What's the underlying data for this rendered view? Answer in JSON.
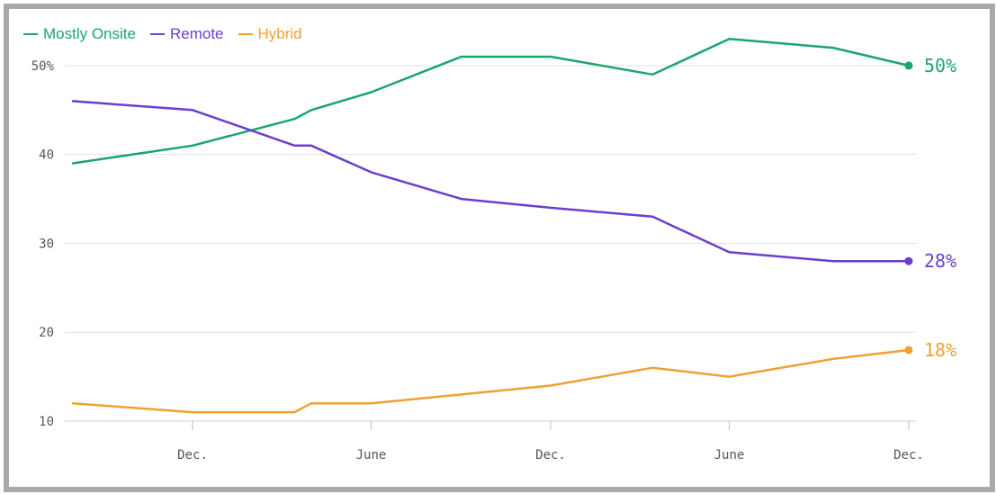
{
  "chart_data": {
    "type": "line",
    "title": "",
    "xlabel": "",
    "ylabel": "",
    "ylim": [
      10,
      55
    ],
    "y_ticks": [
      {
        "value": 50,
        "label": "50%"
      },
      {
        "value": 40,
        "label": "40"
      },
      {
        "value": 30,
        "label": "30"
      },
      {
        "value": 20,
        "label": "20"
      },
      {
        "value": 10,
        "label": "10"
      }
    ],
    "x_ticks": [
      {
        "date": "2020-12-01",
        "label": "Dec."
      },
      {
        "date": "2021-06-01",
        "label": "June"
      },
      {
        "date": "2021-12-01",
        "label": "Dec."
      },
      {
        "date": "2022-06-01",
        "label": "June"
      },
      {
        "date": "2022-12-01",
        "label": "Dec."
      }
    ],
    "xlim": [
      "2020-08-01",
      "2022-12-01"
    ],
    "grid": "horizontal",
    "legend_position": "top-left",
    "series": [
      {
        "name": "Mostly Onsite",
        "color": "#1aa66a",
        "end_label": "50%",
        "points": [
          {
            "x": "2020-08-01",
            "y": 39
          },
          {
            "x": "2020-12-01",
            "y": 41
          },
          {
            "x": "2021-03-15",
            "y": 44
          },
          {
            "x": "2021-04-01",
            "y": 45
          },
          {
            "x": "2021-06-01",
            "y": 47
          },
          {
            "x": "2021-09-01",
            "y": 51
          },
          {
            "x": "2021-12-01",
            "y": 51
          },
          {
            "x": "2022-03-15",
            "y": 49
          },
          {
            "x": "2022-06-01",
            "y": 53
          },
          {
            "x": "2022-09-15",
            "y": 52
          },
          {
            "x": "2022-12-01",
            "y": 50
          }
        ]
      },
      {
        "name": "Remote",
        "color": "#6a3fd0",
        "end_label": "28%",
        "points": [
          {
            "x": "2020-08-01",
            "y": 46
          },
          {
            "x": "2020-12-01",
            "y": 45
          },
          {
            "x": "2021-03-15",
            "y": 41
          },
          {
            "x": "2021-04-01",
            "y": 41
          },
          {
            "x": "2021-06-01",
            "y": 38
          },
          {
            "x": "2021-09-01",
            "y": 35
          },
          {
            "x": "2021-12-01",
            "y": 34
          },
          {
            "x": "2022-03-15",
            "y": 33
          },
          {
            "x": "2022-06-01",
            "y": 29
          },
          {
            "x": "2022-09-15",
            "y": 28
          },
          {
            "x": "2022-12-01",
            "y": 28
          }
        ]
      },
      {
        "name": "Hybrid",
        "color": "#f0a030",
        "end_label": "18%",
        "points": [
          {
            "x": "2020-08-01",
            "y": 12
          },
          {
            "x": "2020-12-01",
            "y": 11
          },
          {
            "x": "2021-03-15",
            "y": 11
          },
          {
            "x": "2021-04-01",
            "y": 12
          },
          {
            "x": "2021-06-01",
            "y": 12
          },
          {
            "x": "2021-09-01",
            "y": 13
          },
          {
            "x": "2021-12-01",
            "y": 14
          },
          {
            "x": "2022-03-15",
            "y": 16
          },
          {
            "x": "2022-06-01",
            "y": 15
          },
          {
            "x": "2022-09-15",
            "y": 17
          },
          {
            "x": "2022-12-01",
            "y": 18
          }
        ]
      }
    ]
  }
}
